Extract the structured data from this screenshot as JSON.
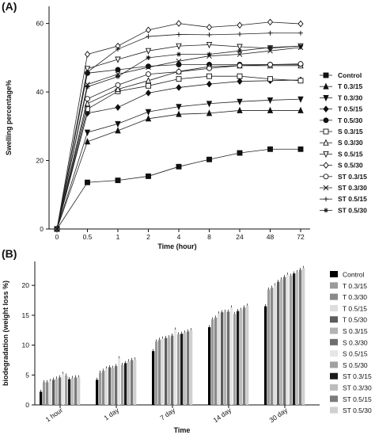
{
  "chart_data": [
    {
      "panel_label": "(A)",
      "type": "line",
      "xlabel": "Time (hour)",
      "ylabel": "Swelling percentage%",
      "x": [
        "0",
        "0.5",
        "1",
        "2",
        "4",
        "8",
        "24",
        "48",
        "72"
      ],
      "y_ticks": [
        "0",
        "20",
        "40",
        "60"
      ],
      "ylim": [
        0,
        65
      ],
      "legend_position": "right",
      "series": [
        {
          "name": "Control",
          "marker": "square-filled",
          "values": [
            0,
            13.6,
            14.2,
            15.4,
            18.2,
            20.3,
            22.2,
            23.3,
            23.3
          ]
        },
        {
          "name": "T 0.3/15",
          "marker": "triangle-up-filled",
          "values": [
            0,
            25.5,
            28.7,
            32.2,
            33.5,
            33.8,
            34.6,
            34.6,
            34.6
          ]
        },
        {
          "name": "T 0.3/30",
          "marker": "triangle-down-filled",
          "values": [
            0,
            28.2,
            30.7,
            34.2,
            35.7,
            36.6,
            37.2,
            37.6,
            37.9
          ]
        },
        {
          "name": "T 0.5/15",
          "marker": "diamond-filled",
          "values": [
            0,
            33.8,
            35.5,
            39.7,
            41.3,
            42.3,
            43.1,
            43.3,
            43.5
          ]
        },
        {
          "name": "T 0.5/30",
          "marker": "circle-filled",
          "values": [
            0,
            45.5,
            46.5,
            47.5,
            48.0,
            48.0,
            48.0,
            48.0,
            48.0
          ]
        },
        {
          "name": "S 0.3/15",
          "marker": "square-open",
          "values": [
            0,
            35.0,
            40.2,
            41.8,
            43.8,
            44.6,
            44.6,
            43.8,
            43.3
          ]
        },
        {
          "name": "S 0.3/30",
          "marker": "triangle-up-open",
          "values": [
            0,
            36.6,
            40.8,
            43.3,
            46.0,
            47.4,
            47.7,
            47.7,
            47.7
          ]
        },
        {
          "name": "S 0.5/15",
          "marker": "triangle-down-open",
          "values": [
            0,
            46.8,
            49.5,
            52.0,
            53.4,
            53.8,
            53.2,
            52.8,
            53.4
          ]
        },
        {
          "name": "S 0.5/30",
          "marker": "diamond-open",
          "values": [
            0,
            51.0,
            53.4,
            58.1,
            60.0,
            58.9,
            59.5,
            60.4,
            59.9
          ]
        },
        {
          "name": "ST 0.3/15",
          "marker": "circle-open",
          "values": [
            0,
            38.0,
            42.0,
            45.2,
            45.9,
            46.9,
            47.7,
            48.0,
            48.2
          ]
        },
        {
          "name": "ST 0.3/30",
          "marker": "x",
          "values": [
            0,
            42.2,
            45.2,
            47.2,
            49.0,
            50.5,
            51.0,
            52.0,
            53.0
          ]
        },
        {
          "name": "ST 0.5/15",
          "marker": "plus",
          "values": [
            0,
            45.8,
            52.5,
            56.2,
            56.8,
            56.7,
            56.9,
            57.2,
            57.2
          ]
        },
        {
          "name": "ST 0.5/30",
          "marker": "star",
          "values": [
            0,
            41.5,
            44.5,
            50.0,
            51.0,
            51.0,
            52.0,
            53.0,
            53.4
          ]
        }
      ]
    },
    {
      "panel_label": "(B)",
      "type": "bar",
      "xlabel": "Time",
      "ylabel": "biodegradation (weight loss %)",
      "categories": [
        "1 hour",
        "1 day",
        "7 day",
        "14 day",
        "30 day"
      ],
      "y_ticks": [
        "0",
        "5",
        "10",
        "15",
        "20"
      ],
      "ylim": [
        0,
        24
      ],
      "legend_position": "right",
      "series": [
        {
          "name": "Control",
          "color": "#000000",
          "values": [
            2.2,
            4.2,
            9.0,
            13.0,
            16.5
          ]
        },
        {
          "name": "T 0.3/15",
          "color": "#9a9a9a",
          "values": [
            3.8,
            5.4,
            10.6,
            14.3,
            19.3
          ]
        },
        {
          "name": "T 0.3/30",
          "color": "#8a8a8a",
          "values": [
            3.8,
            5.7,
            10.9,
            14.6,
            19.6
          ]
        },
        {
          "name": "T 0.5/15",
          "color": "#dddddd",
          "values": [
            4.0,
            6.1,
            11.1,
            15.3,
            20.0
          ]
        },
        {
          "name": "T 0.5/30",
          "color": "#5c5c5c",
          "values": [
            4.2,
            6.3,
            11.2,
            15.5,
            20.6
          ]
        },
        {
          "name": "S 0.3/15",
          "color": "#b3b3b3",
          "values": [
            4.4,
            6.2,
            11.3,
            15.6,
            21.0
          ]
        },
        {
          "name": "S 0.3/30",
          "color": "#6e6e6e",
          "values": [
            4.6,
            6.5,
            11.6,
            15.6,
            21.4
          ]
        },
        {
          "name": "S 0.5/15",
          "color": "#e6e6e6",
          "values": [
            5.2,
            7.8,
            12.6,
            16.3,
            21.8
          ]
        },
        {
          "name": "S 0.5/30",
          "color": "#a0a0a0",
          "values": [
            4.9,
            6.7,
            11.8,
            15.2,
            21.6
          ]
        },
        {
          "name": "ST 0.3/15",
          "color": "#1a1a1a",
          "values": [
            4.3,
            7.0,
            11.9,
            15.7,
            22.0
          ]
        },
        {
          "name": "ST 0.3/30",
          "color": "#bdbdbd",
          "values": [
            4.5,
            7.3,
            12.1,
            15.9,
            22.2
          ]
        },
        {
          "name": "ST 0.5/15",
          "color": "#7a7a7a",
          "values": [
            4.6,
            7.5,
            12.3,
            16.3,
            22.6
          ]
        },
        {
          "name": "ST 0.5/30",
          "color": "#d0d0d0",
          "values": [
            4.6,
            7.6,
            12.5,
            16.6,
            22.9
          ]
        }
      ]
    }
  ]
}
